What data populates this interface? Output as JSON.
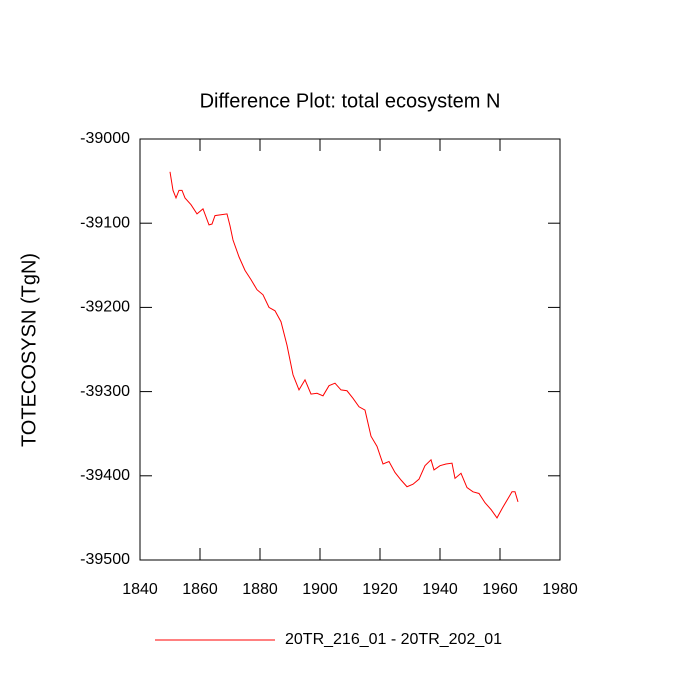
{
  "chart_data": {
    "type": "line",
    "title": "Difference Plot: total ecosystem N",
    "y_label": "TOTECOSYSN  (TgN)",
    "x": [
      1850,
      1851,
      1852,
      1853,
      1854,
      1855,
      1857,
      1859,
      1861,
      1863,
      1864,
      1865,
      1867,
      1869,
      1870,
      1871,
      1873,
      1875,
      1877,
      1879,
      1881,
      1883,
      1885,
      1887,
      1889,
      1891,
      1893,
      1895,
      1897,
      1899,
      1901,
      1903,
      1905,
      1907,
      1909,
      1911,
      1913,
      1915,
      1917,
      1919,
      1921,
      1923,
      1925,
      1927,
      1929,
      1931,
      1933,
      1935,
      1937,
      1938,
      1940,
      1942,
      1944,
      1945,
      1947,
      1949,
      1951,
      1953,
      1955,
      1957,
      1959,
      1961,
      1963,
      1964,
      1965,
      1966
    ],
    "series": [
      {
        "name": "20TR_216_01 - 20TR_202_01",
        "color": "#ff0000",
        "values": [
          -39039,
          -39061,
          -39070,
          -39061,
          -39061,
          -39070,
          -39078,
          -39089,
          -39083,
          -39102,
          -39101,
          -39091,
          -39090,
          -39089,
          -39103,
          -39120,
          -39140,
          -39156,
          -39167,
          -39179,
          -39185,
          -39200,
          -39204,
          -39217,
          -39245,
          -39280,
          -39298,
          -39286,
          -39303,
          -39302,
          -39305,
          -39293,
          -39290,
          -39298,
          -39299,
          -39308,
          -39318,
          -39322,
          -39353,
          -39365,
          -39386,
          -39383,
          -39396,
          -39405,
          -39413,
          -39410,
          -39404,
          -39388,
          -39381,
          -39393,
          -39388,
          -39386,
          -39385,
          -39403,
          -39397,
          -39414,
          -39419,
          -39421,
          -39432,
          -39440,
          -39450,
          -39437,
          -39425,
          -39419,
          -39419,
          -39431
        ]
      }
    ],
    "xlim": [
      1840,
      1980
    ],
    "xticks": [
      1840,
      1860,
      1880,
      1900,
      1920,
      1940,
      1960,
      1980
    ],
    "ylim": [
      -39500,
      -39000
    ],
    "yticks": [
      -39500,
      -39400,
      -39300,
      -39200,
      -39100,
      -39000
    ],
    "legend": "bottom"
  }
}
